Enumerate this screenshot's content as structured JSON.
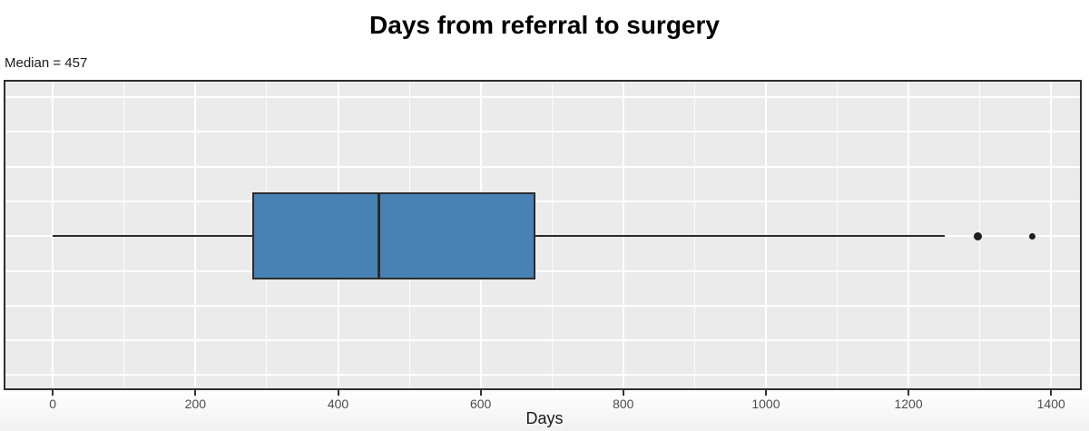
{
  "chart_data": {
    "type": "boxplot",
    "orientation": "horizontal",
    "title": "Days from referral to surgery",
    "annotation": "Median = 457",
    "xlabel": "Days",
    "ylabel": "",
    "xlim": [
      -69,
      1443
    ],
    "x_ticks": [
      0,
      200,
      400,
      600,
      800,
      1000,
      1200,
      1400
    ],
    "x_minor_step": 100,
    "grid": true,
    "y_gridline_count": 9,
    "legend": "none",
    "series": [
      {
        "name": "days-from-referral-to-surgery",
        "whisker_min": 0,
        "q1": 280,
        "median": 457,
        "q3": 677,
        "whisker_max": 1251,
        "outliers": [
          1297,
          1373
        ]
      }
    ],
    "colors": {
      "box_fill": "#4682B4",
      "box_border": "#2b2b2b",
      "panel_bg": "#EBEBEB",
      "panel_border": "#2e2e2e",
      "gridline": "#ffffff",
      "tick_label": "#4d4d4d",
      "axis_title": "#1a1a1a",
      "title": "#000000",
      "outlier": "#1f1f1f"
    }
  }
}
